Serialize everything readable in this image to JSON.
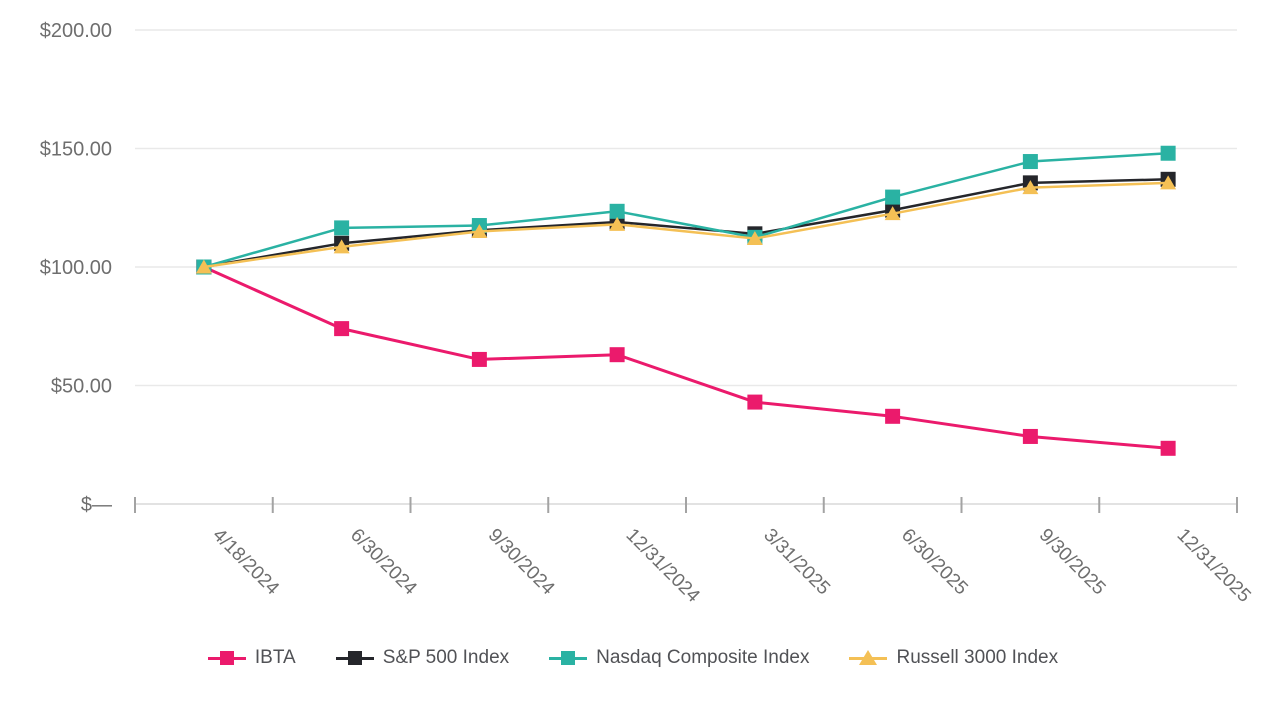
{
  "chart_data": {
    "type": "line",
    "title": "",
    "categories": [
      "4/18/2024",
      "6/30/2024",
      "9/30/2024",
      "12/31/2024",
      "3/31/2025",
      "6/30/2025",
      "9/30/2025",
      "12/31/2025"
    ],
    "series": [
      {
        "name": "IBTA",
        "color": "#EB1A6C",
        "marker": "square",
        "values": [
          100,
          74,
          61,
          63,
          43,
          37,
          28.5,
          23.5
        ]
      },
      {
        "name": "S&P 500 Index",
        "color": "#25262B",
        "marker": "square",
        "values": [
          100,
          110,
          115.5,
          119,
          114,
          124,
          135.5,
          137
        ]
      },
      {
        "name": "Nasdaq Composite Index",
        "color": "#2AB2A3",
        "marker": "square",
        "values": [
          100,
          116.5,
          117.5,
          123.5,
          112.5,
          129.5,
          144.5,
          148
        ]
      },
      {
        "name": "Russell 3000 Index",
        "color": "#F4C055",
        "marker": "triangle",
        "values": [
          100,
          108.5,
          115,
          118,
          112,
          122.5,
          133.5,
          135.5
        ]
      }
    ],
    "y_axis": {
      "min": 0,
      "max": 200,
      "ticks": [
        {
          "value": 200,
          "label": "$200.00"
        },
        {
          "value": 150,
          "label": "$150.00"
        },
        {
          "value": 100,
          "label": "$100.00"
        },
        {
          "value": 50,
          "label": "$50.00"
        },
        {
          "value": 0,
          "label": "$—"
        }
      ]
    },
    "x_axis": {
      "labels_rotation_deg": 45
    },
    "legend_position": "bottom",
    "grid": true
  },
  "colors": {
    "background": "#FFFFFF",
    "grid": "#E9E9E9",
    "axis_line": "#D8D8D8",
    "tick": "#A3A3A3",
    "axis_label": "#6E6E6E",
    "legend_text": "#515256"
  }
}
